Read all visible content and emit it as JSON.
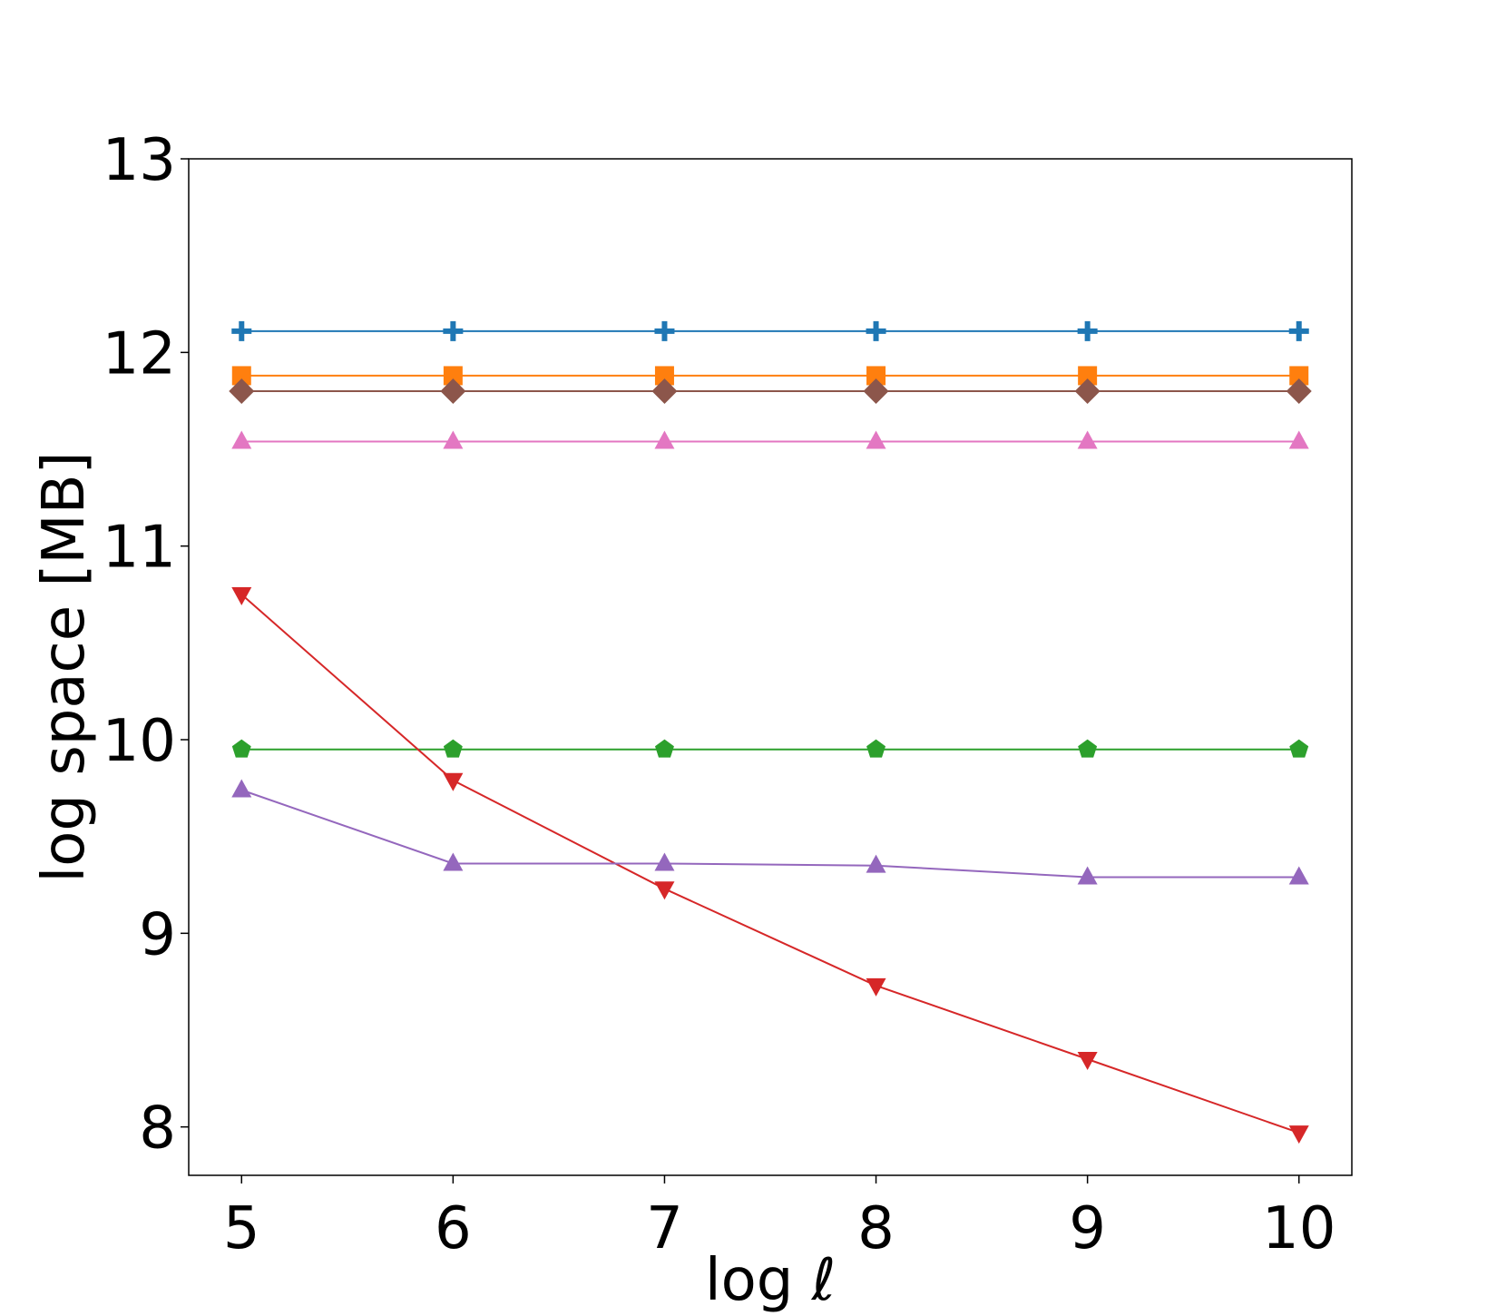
{
  "chart_data": {
    "type": "line",
    "title": "",
    "xlabel": "log ℓ",
    "ylabel": "log space [MB]",
    "xlim": [
      4.75,
      10.25
    ],
    "ylim": [
      7.75,
      13
    ],
    "xticks": [
      5,
      6,
      7,
      8,
      9,
      10
    ],
    "yticks": [
      8,
      9,
      10,
      11,
      12,
      13
    ],
    "grid": false,
    "x": [
      5,
      6,
      7,
      8,
      9,
      10
    ],
    "series": [
      {
        "color": "#1f77b4",
        "marker": "plus",
        "values": [
          12.11,
          12.11,
          12.11,
          12.11,
          12.11,
          12.11
        ]
      },
      {
        "color": "#ff7f0e",
        "marker": "square",
        "values": [
          11.88,
          11.88,
          11.88,
          11.88,
          11.88,
          11.88
        ]
      },
      {
        "color": "#2ca02c",
        "marker": "pentagon",
        "values": [
          9.95,
          9.95,
          9.95,
          9.95,
          9.95,
          9.95
        ]
      },
      {
        "color": "#d62728",
        "marker": "triangle-down",
        "values": [
          10.75,
          9.79,
          9.23,
          8.73,
          8.35,
          7.97
        ]
      },
      {
        "color": "#9467bd",
        "marker": "triangle-up",
        "values": [
          9.74,
          9.36,
          9.36,
          9.35,
          9.29,
          9.29
        ]
      },
      {
        "color": "#8c564b",
        "marker": "diamond",
        "values": [
          11.8,
          11.8,
          11.8,
          11.8,
          11.8,
          11.8
        ]
      },
      {
        "color": "#e377c2",
        "marker": "triangle-up",
        "values": [
          11.54,
          11.54,
          11.54,
          11.54,
          11.54,
          11.54
        ]
      }
    ]
  }
}
